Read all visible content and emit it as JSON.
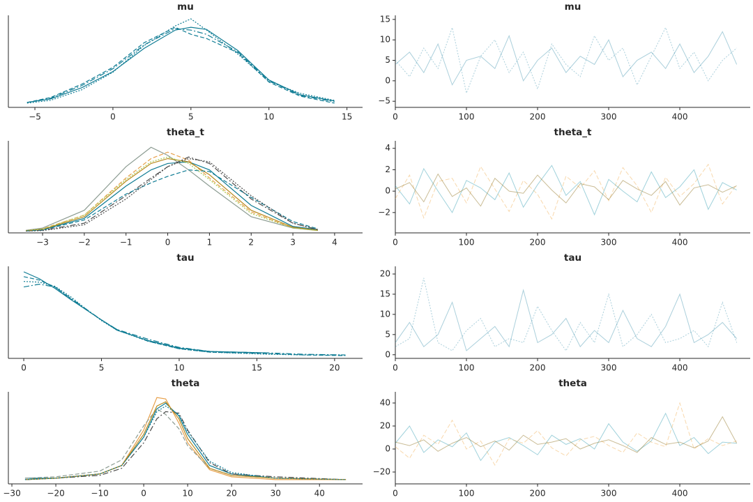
{
  "chart_data": [
    {
      "type": "line",
      "title": "mu",
      "x": [
        -5.5,
        -4,
        -2,
        0,
        2,
        4,
        5,
        6,
        8,
        10,
        12,
        14.2
      ],
      "xlim": [
        -6.7,
        16
      ],
      "ylim": [
        -0.006,
        0.125
      ],
      "xticks": [
        {
          "value": -5,
          "label": "−5"
        },
        0,
        5,
        10,
        15
      ],
      "series": [
        {
          "color": "#0f7c94",
          "dash": "solid",
          "values": [
            0.001,
            0.006,
            0.022,
            0.045,
            0.078,
            0.104,
            0.108,
            0.105,
            0.075,
            0.033,
            0.012,
            0.003
          ]
        },
        {
          "color": "#0f7c94",
          "dash": "dashed",
          "values": [
            0.001,
            0.008,
            0.027,
            0.051,
            0.086,
            0.108,
            0.098,
            0.092,
            0.072,
            0.03,
            0.01,
            0.0
          ]
        },
        {
          "color": "#0f7c94",
          "dash": "dashdot",
          "values": [
            0.001,
            0.007,
            0.025,
            0.049,
            0.083,
            0.106,
            0.104,
            0.098,
            0.073,
            0.032,
            0.011,
            0.002
          ]
        },
        {
          "color": "#0f7c94",
          "dash": "dotted",
          "values": [
            0.0,
            0.004,
            0.019,
            0.044,
            0.082,
            0.11,
            0.12,
            0.104,
            0.07,
            0.031,
            0.014,
            0.004
          ]
        }
      ]
    },
    {
      "type": "line",
      "title": "mu",
      "opacity": 0.4,
      "x": [
        0,
        20,
        40,
        60,
        80,
        100,
        120,
        140,
        160,
        180,
        200,
        220,
        240,
        260,
        280,
        300,
        320,
        340,
        360,
        380,
        400,
        420,
        440,
        460,
        480
      ],
      "xlim": [
        0,
        499
      ],
      "ylim": [
        -6.5,
        16
      ],
      "xticks": [
        0,
        100,
        200,
        300,
        400
      ],
      "yticks": [
        {
          "value": -5,
          "label": "−5"
        },
        0,
        5,
        10,
        15
      ],
      "series": [
        {
          "color": "#2a88a4",
          "dash": "solid",
          "values": [
            4,
            7,
            2,
            9,
            -1,
            5,
            6,
            3,
            11,
            0,
            5,
            8,
            2,
            6,
            4,
            10,
            1,
            5,
            7,
            3,
            9,
            2,
            6,
            12,
            4
          ]
        },
        {
          "color": "#2a88a4",
          "dash": "dotted",
          "values": [
            5,
            1,
            8,
            3,
            13,
            -3,
            6,
            10,
            2,
            7,
            -2,
            9,
            4,
            1,
            11,
            5,
            8,
            -1,
            6,
            13,
            3,
            7,
            0,
            5,
            8
          ]
        }
      ]
    },
    {
      "type": "line",
      "title": "theta_t",
      "x": [
        -3.4,
        -3,
        -2,
        -1,
        -0.4,
        0,
        0.5,
        1,
        2,
        3,
        3.6
      ],
      "xlim": [
        -3.82,
        4.67
      ],
      "ylim": [
        -0.01,
        0.56
      ],
      "xticks": [
        {
          "value": -3,
          "label": "−3"
        },
        {
          "value": -2,
          "label": "−2"
        },
        {
          "value": -1,
          "label": "−1"
        },
        0,
        1,
        2,
        3,
        4
      ],
      "series": [
        {
          "color": "#0f7c94",
          "dash": "solid",
          "values": [
            0.003,
            0.01,
            0.08,
            0.28,
            0.38,
            0.42,
            0.43,
            0.38,
            0.16,
            0.03,
            0.01
          ]
        },
        {
          "color": "#e8a04a",
          "dash": "dashed",
          "values": [
            0.005,
            0.015,
            0.1,
            0.33,
            0.45,
            0.49,
            0.44,
            0.33,
            0.12,
            0.02,
            0.005
          ]
        },
        {
          "color": "#8c9c92",
          "dash": "solid",
          "values": [
            0.006,
            0.02,
            0.13,
            0.4,
            0.52,
            0.47,
            0.38,
            0.28,
            0.09,
            0.02,
            0.005
          ]
        },
        {
          "color": "#4a4a4a",
          "dash": "dashdot",
          "values": [
            0.002,
            0.006,
            0.05,
            0.22,
            0.33,
            0.4,
            0.46,
            0.42,
            0.2,
            0.05,
            0.01
          ]
        },
        {
          "color": "#b88a1e",
          "dash": "solid",
          "values": [
            0.004,
            0.012,
            0.09,
            0.31,
            0.42,
            0.45,
            0.43,
            0.35,
            0.13,
            0.025,
            0.006
          ]
        },
        {
          "color": "#0f7c94",
          "dash": "dashed",
          "values": [
            0.002,
            0.008,
            0.07,
            0.23,
            0.3,
            0.34,
            0.38,
            0.37,
            0.21,
            0.06,
            0.015
          ]
        },
        {
          "color": "#a8c94a",
          "dash": "dotted",
          "values": [
            0.004,
            0.014,
            0.1,
            0.32,
            0.43,
            0.46,
            0.42,
            0.32,
            0.11,
            0.02,
            0.004
          ]
        },
        {
          "color": "#4a4a4a",
          "dash": "dotted",
          "values": [
            0.001,
            0.004,
            0.04,
            0.2,
            0.32,
            0.4,
            0.45,
            0.43,
            0.22,
            0.05,
            0.01
          ]
        }
      ]
    },
    {
      "type": "line",
      "title": "theta_t",
      "opacity": 0.45,
      "x": [
        0,
        20,
        40,
        60,
        80,
        100,
        120,
        140,
        160,
        180,
        200,
        220,
        240,
        260,
        280,
        300,
        320,
        340,
        360,
        380,
        400,
        420,
        440,
        460,
        480
      ],
      "xlim": [
        0,
        499
      ],
      "ylim": [
        -3.9,
        4.7
      ],
      "xticks": [
        0,
        100,
        200,
        300,
        400
      ],
      "yticks": [
        {
          "value": -2,
          "label": "−2"
        },
        0,
        2,
        4
      ],
      "series": [
        {
          "color": "#2a9ab0",
          "dash": "solid",
          "values": [
            0.5,
            -1.2,
            2.1,
            0,
            -2,
            1,
            0.3,
            -0.8,
            1.7,
            -1.5,
            0.6,
            2.4,
            -0.4,
            0.9,
            -2.2,
            1.1,
            0,
            -1,
            1.8,
            -0.6,
            0.4,
            2,
            -1.7,
            0.8,
            0.1
          ]
        },
        {
          "color": "#f0a848",
          "dash": "dashed",
          "values": [
            -0.7,
            1.5,
            -2.5,
            0.9,
            1.2,
            -1.1,
            2.3,
            0.2,
            -1.9,
            1,
            -0.3,
            -2.6,
            1.4,
            0.3,
            1.9,
            -0.9,
            2.2,
            0.5,
            -2,
            1.3,
            -0.5,
            0.7,
            2.5,
            -1.2,
            0.6
          ]
        },
        {
          "color": "#8a6a14",
          "dash": "solid",
          "values": [
            0.2,
            0.8,
            -1,
            1.6,
            -0.5,
            0.3,
            -1.4,
            1.2,
            0,
            -0.2,
            1.5,
            0.1,
            -1.1,
            0.7,
            0.4,
            -0.8,
            1,
            0.2,
            -0.4,
            0.9,
            -1.3,
            0.3,
            0.6,
            -0.1,
            0.5
          ]
        }
      ]
    },
    {
      "type": "line",
      "title": "tau",
      "x": [
        0,
        1,
        2,
        3,
        4,
        5,
        6,
        8,
        10,
        12,
        15.7,
        18,
        20.7
      ],
      "xlim": [
        -0.99,
        21.8
      ],
      "ylim": [
        -0.004,
        0.13
      ],
      "xticks": [
        0,
        5,
        10,
        15,
        20
      ],
      "series": [
        {
          "color": "#0f7c94",
          "dash": "solid",
          "values": [
            0.122,
            0.112,
            0.098,
            0.082,
            0.067,
            0.052,
            0.037,
            0.022,
            0.011,
            0.006,
            0.004,
            null,
            null
          ]
        },
        {
          "color": "#0f7c94",
          "dash": "dashed",
          "values": [
            0.115,
            0.11,
            0.1,
            0.083,
            0.067,
            0.052,
            0.038,
            0.021,
            0.01,
            0.005,
            0.003,
            0.001,
            0.0
          ]
        },
        {
          "color": "#0f7c94",
          "dash": "dashdot",
          "values": [
            0.1,
            0.104,
            0.1,
            0.084,
            0.068,
            0.052,
            0.038,
            0.024,
            0.012,
            0.006,
            0.004,
            0.002,
            0.001
          ]
        },
        {
          "color": "#0f7c94",
          "dash": "dotted",
          "values": [
            0.108,
            0.107,
            0.101,
            0.086,
            0.068,
            0.051,
            0.037,
            0.021,
            0.01,
            0.005,
            0.002,
            0.001,
            0.001
          ]
        }
      ]
    },
    {
      "type": "line",
      "title": "tau",
      "opacity": 0.4,
      "x": [
        0,
        20,
        40,
        60,
        80,
        100,
        120,
        140,
        160,
        180,
        200,
        220,
        240,
        260,
        280,
        300,
        320,
        340,
        360,
        380,
        400,
        420,
        440,
        460,
        480
      ],
      "xlim": [
        0,
        499
      ],
      "ylim": [
        -0.9,
        21.9
      ],
      "xticks": [
        0,
        100,
        200,
        300,
        400
      ],
      "yticks": [
        0,
        5,
        10,
        15,
        20
      ],
      "series": [
        {
          "color": "#2a88a4",
          "dash": "solid",
          "values": [
            3,
            8,
            2,
            5,
            13,
            1,
            4,
            7,
            2,
            16,
            3,
            5,
            9,
            2,
            6,
            3,
            11,
            4,
            2,
            7,
            15,
            3,
            5,
            8,
            4
          ]
        },
        {
          "color": "#2a88a4",
          "dash": "dotted",
          "values": [
            2,
            4,
            19,
            3,
            1,
            6,
            9,
            2,
            4,
            3,
            12,
            6,
            1,
            8,
            3,
            15,
            2,
            5,
            10,
            3,
            4,
            6,
            2,
            13,
            3
          ]
        }
      ]
    },
    {
      "type": "line",
      "title": "theta",
      "x": [
        -27,
        -20,
        -10,
        -5,
        0,
        3,
        5,
        8,
        10,
        15,
        20,
        30,
        46
      ],
      "xlim": [
        -30.8,
        49.8
      ],
      "ylim": [
        -0.003,
        0.062
      ],
      "xticks": [
        {
          "value": -30,
          "label": "−30"
        },
        {
          "value": -20,
          "label": "−20"
        },
        {
          "value": -10,
          "label": "−10"
        },
        0,
        10,
        20,
        30,
        40
      ],
      "series": [
        {
          "color": "#0f7c94",
          "dash": "solid",
          "values": [
            0.001,
            0.001,
            0.004,
            0.01,
            0.03,
            0.05,
            0.054,
            0.045,
            0.032,
            0.01,
            0.004,
            0.001,
            0.0
          ]
        },
        {
          "color": "#e8a04a",
          "dash": "solid",
          "values": [
            0.0,
            0.001,
            0.004,
            0.01,
            0.035,
            0.058,
            0.057,
            0.04,
            0.026,
            0.007,
            0.002,
            0.0,
            0.0
          ]
        },
        {
          "color": "#8c9c92",
          "dash": "dashed",
          "values": [
            0.001,
            0.002,
            0.006,
            0.014,
            0.038,
            0.05,
            0.046,
            0.036,
            0.024,
            0.008,
            0.003,
            0.001,
            0.0
          ]
        },
        {
          "color": "#4a4a4a",
          "dash": "dashdot",
          "values": [
            0.0,
            0.001,
            0.003,
            0.008,
            0.026,
            0.043,
            0.048,
            0.047,
            0.035,
            0.012,
            0.004,
            0.002,
            0.0
          ]
        },
        {
          "color": "#b88a1e",
          "dash": "solid",
          "values": [
            0.0,
            0.001,
            0.004,
            0.01,
            0.032,
            0.052,
            0.055,
            0.043,
            0.029,
            0.008,
            0.003,
            0.001,
            0.0
          ]
        },
        {
          "color": "#0f7c94",
          "dash": "dotted",
          "values": [
            0.0,
            0.001,
            0.004,
            0.01,
            0.03,
            0.048,
            0.052,
            0.046,
            0.034,
            0.013,
            0.005,
            0.001,
            0.0
          ]
        }
      ]
    },
    {
      "type": "line",
      "title": "theta",
      "opacity": 0.45,
      "x": [
        0,
        20,
        40,
        60,
        80,
        100,
        120,
        140,
        160,
        180,
        200,
        220,
        240,
        260,
        280,
        300,
        320,
        340,
        360,
        380,
        400,
        420,
        440,
        460,
        480
      ],
      "xlim": [
        0,
        499
      ],
      "ylim": [
        -30.3,
        49.7
      ],
      "xticks": [
        0,
        100,
        200,
        300,
        400
      ],
      "yticks": [
        {
          "value": -20,
          "label": "−20"
        },
        0,
        20,
        40
      ],
      "series": [
        {
          "color": "#2a9ab0",
          "dash": "solid",
          "values": [
            5,
            20,
            -3,
            8,
            2,
            14,
            -10,
            6,
            10,
            3,
            -5,
            12,
            4,
            9,
            0,
            22,
            6,
            -2,
            7,
            31,
            3,
            10,
            -4,
            6,
            5
          ]
        },
        {
          "color": "#f0a848",
          "dash": "dashed",
          "values": [
            2,
            -8,
            12,
            4,
            25,
            0,
            7,
            -14,
            9,
            5,
            16,
            1,
            -6,
            8,
            11,
            3,
            -3,
            14,
            6,
            2,
            40,
            0,
            9,
            3,
            7
          ]
        },
        {
          "color": "#8a6a14",
          "dash": "solid",
          "values": [
            6,
            3,
            8,
            -2,
            5,
            10,
            2,
            7,
            -1,
            12,
            4,
            6,
            9,
            0,
            5,
            8,
            3,
            -3,
            10,
            4,
            6,
            1,
            7,
            28,
            5
          ]
        }
      ]
    }
  ]
}
